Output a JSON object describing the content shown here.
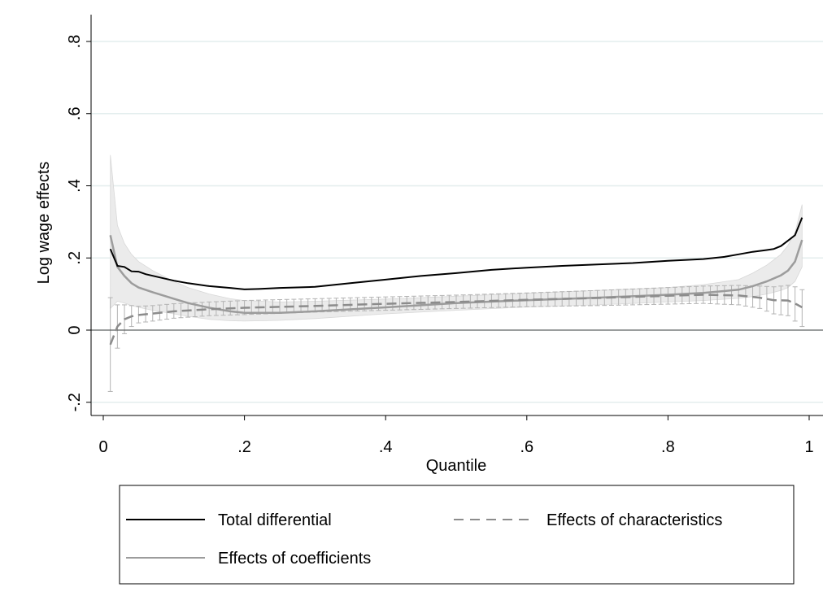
{
  "chart_data": {
    "type": "line",
    "title": "",
    "xlabel": "Quantile",
    "ylabel": "Log wage effects",
    "xlim": [
      0,
      1
    ],
    "ylim": [
      -0.2,
      0.8
    ],
    "x_ticks": [
      0,
      0.2,
      0.4,
      0.6,
      0.8,
      1
    ],
    "x_tick_labels": [
      "0",
      ".2",
      ".4",
      ".6",
      ".8",
      "1"
    ],
    "y_ticks": [
      -0.2,
      0,
      0.2,
      0.4,
      0.6,
      0.8
    ],
    "y_tick_labels": [
      "-.2",
      "0",
      ".2",
      ".4",
      ".6",
      ".8"
    ],
    "grid": true,
    "reference_line_y": 0,
    "legend_position": "bottom",
    "series": [
      {
        "name": "Total differential",
        "style": "solid",
        "color": "#000000",
        "x": [
          0.01,
          0.02,
          0.03,
          0.04,
          0.05,
          0.06,
          0.08,
          0.1,
          0.12,
          0.15,
          0.18,
          0.2,
          0.22,
          0.25,
          0.3,
          0.35,
          0.4,
          0.45,
          0.5,
          0.55,
          0.6,
          0.65,
          0.7,
          0.75,
          0.8,
          0.85,
          0.88,
          0.9,
          0.92,
          0.94,
          0.95,
          0.96,
          0.97,
          0.98,
          0.99
        ],
        "y": [
          0.225,
          0.178,
          0.175,
          0.163,
          0.162,
          0.155,
          0.146,
          0.137,
          0.13,
          0.122,
          0.117,
          0.113,
          0.114,
          0.117,
          0.12,
          0.13,
          0.14,
          0.15,
          0.158,
          0.167,
          0.173,
          0.178,
          0.182,
          0.186,
          0.192,
          0.197,
          0.203,
          0.21,
          0.217,
          0.222,
          0.225,
          0.233,
          0.248,
          0.263,
          0.312
        ]
      },
      {
        "name": "Effects of characteristics",
        "style": "dashed",
        "color": "#8c8c8c",
        "x": [
          0.01,
          0.02,
          0.03,
          0.04,
          0.05,
          0.07,
          0.1,
          0.15,
          0.2,
          0.3,
          0.4,
          0.5,
          0.6,
          0.7,
          0.8,
          0.85,
          0.9,
          0.93,
          0.95,
          0.97,
          0.98,
          0.99
        ],
        "y": [
          -0.04,
          0.01,
          0.03,
          0.038,
          0.042,
          0.046,
          0.052,
          0.058,
          0.062,
          0.067,
          0.073,
          0.078,
          0.084,
          0.089,
          0.095,
          0.098,
          0.096,
          0.09,
          0.083,
          0.082,
          0.074,
          0.063
        ],
        "ci_lower": [
          -0.17,
          -0.05,
          -0.01,
          0.01,
          0.02,
          0.025,
          0.033,
          0.04,
          0.043,
          0.05,
          0.055,
          0.06,
          0.065,
          0.068,
          0.072,
          0.074,
          0.07,
          0.06,
          0.045,
          0.04,
          0.025,
          0.01
        ],
        "ci_upper": [
          0.09,
          0.07,
          0.07,
          0.068,
          0.066,
          0.068,
          0.073,
          0.078,
          0.082,
          0.087,
          0.092,
          0.097,
          0.103,
          0.11,
          0.118,
          0.122,
          0.124,
          0.122,
          0.12,
          0.124,
          0.12,
          0.112
        ]
      },
      {
        "name": "Effects of coefficients",
        "style": "solid",
        "color": "#9c9c9c",
        "x": [
          0.01,
          0.02,
          0.03,
          0.04,
          0.05,
          0.07,
          0.1,
          0.12,
          0.15,
          0.18,
          0.2,
          0.25,
          0.3,
          0.4,
          0.5,
          0.6,
          0.7,
          0.8,
          0.85,
          0.9,
          0.92,
          0.94,
          0.96,
          0.97,
          0.98,
          0.99
        ],
        "y": [
          0.263,
          0.175,
          0.15,
          0.13,
          0.118,
          0.105,
          0.087,
          0.075,
          0.062,
          0.052,
          0.048,
          0.048,
          0.052,
          0.063,
          0.075,
          0.083,
          0.09,
          0.098,
          0.103,
          0.112,
          0.122,
          0.135,
          0.152,
          0.165,
          0.19,
          0.25
        ],
        "ci_lower": [
          0.06,
          0.08,
          0.075,
          0.068,
          0.063,
          0.055,
          0.045,
          0.038,
          0.03,
          0.026,
          0.025,
          0.027,
          0.032,
          0.045,
          0.055,
          0.064,
          0.07,
          0.078,
          0.082,
          0.088,
          0.093,
          0.1,
          0.11,
          0.118,
          0.135,
          0.175
        ],
        "ci_upper": [
          0.485,
          0.29,
          0.24,
          0.21,
          0.19,
          0.165,
          0.135,
          0.118,
          0.1,
          0.087,
          0.082,
          0.078,
          0.08,
          0.086,
          0.094,
          0.102,
          0.11,
          0.118,
          0.126,
          0.14,
          0.158,
          0.18,
          0.21,
          0.235,
          0.27,
          0.348
        ]
      }
    ],
    "legend": [
      {
        "label": "Total differential",
        "style": "solid",
        "color": "#000000"
      },
      {
        "label": "Effects of characteristics",
        "style": "dashed",
        "color": "#8c8c8c"
      },
      {
        "label": "Effects of coefficients",
        "style": "solid",
        "color": "#9c9c9c"
      }
    ]
  }
}
